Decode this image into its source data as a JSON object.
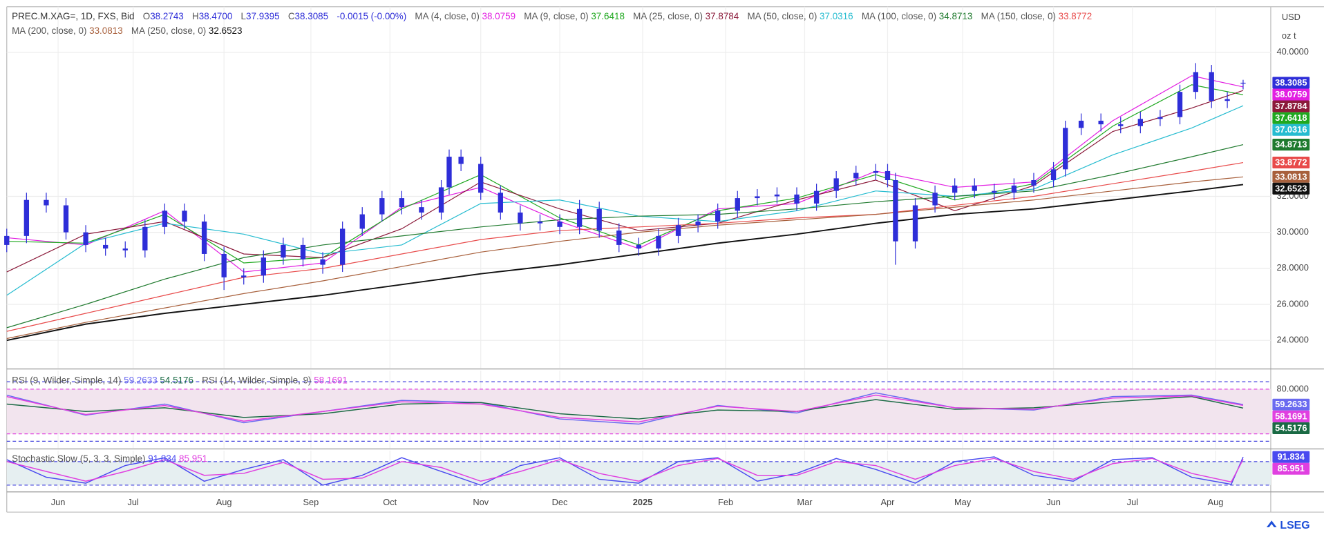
{
  "chart_data": [
    {
      "type": "candlestick",
      "title": "PREC.M.XAG=, 1D, FXS, Bid",
      "ohlc_header": [
        {
          "key": "O",
          "value": "38.2743"
        },
        {
          "key": "H",
          "value": "38.4700"
        },
        {
          "key": "L",
          "value": "37.9395"
        },
        {
          "key": "C",
          "value": "38.3085"
        }
      ],
      "change": "-0.0015 (-0.00%)",
      "currency": "USD",
      "unit": "oz t",
      "color": "#2e2ed8",
      "x": [
        0,
        5,
        10,
        15,
        20,
        25,
        30,
        35,
        40,
        45,
        50,
        55,
        60,
        65,
        70,
        75,
        80,
        85,
        90,
        95,
        100,
        105,
        110,
        112,
        115,
        120,
        125,
        130,
        135,
        140,
        145,
        150,
        155,
        160,
        165,
        170,
        175,
        180,
        185,
        190,
        195,
        200,
        205,
        210,
        215,
        220,
        223,
        225,
        230,
        235,
        240,
        245,
        250,
        255,
        260,
        265,
        268,
        272,
        277,
        282,
        287,
        292,
        297,
        301,
        305,
        309,
        313
      ],
      "open": [
        29.3,
        29.8,
        31.8,
        31.5,
        30.0,
        29.3,
        29.1,
        29.0,
        30.3,
        31.2,
        30.6,
        28.8,
        27.5,
        27.6,
        28.6,
        29.3,
        28.5,
        28.2,
        30.2,
        31.0,
        31.9,
        31.4,
        31.1,
        32.5,
        34.2,
        33.8,
        32.2,
        31.1,
        30.5,
        30.6,
        30.3,
        31.3,
        30.1,
        29.3,
        29.1,
        29.8,
        30.4,
        30.6,
        31.2,
        31.9,
        32.0,
        32.1,
        31.6,
        32.3,
        33.0,
        33.3,
        33.4,
        32.9,
        29.5,
        31.5,
        32.2,
        32.6,
        32.3,
        32.2,
        32.6,
        32.9,
        33.5,
        35.8,
        36.2,
        36.0,
        35.9,
        36.3,
        36.4,
        37.8,
        38.9,
        37.3,
        38.2743
      ],
      "high": [
        30.2,
        32.2,
        32.2,
        31.9,
        30.4,
        29.7,
        29.5,
        30.7,
        31.6,
        31.6,
        31.0,
        29.2,
        28.0,
        29.0,
        29.7,
        29.7,
        28.9,
        30.6,
        31.4,
        32.3,
        32.3,
        31.8,
        32.9,
        34.6,
        34.6,
        34.2,
        32.6,
        31.5,
        31.0,
        31.0,
        31.8,
        31.7,
        30.5,
        29.7,
        30.2,
        30.8,
        31.0,
        31.6,
        32.3,
        32.4,
        32.5,
        32.5,
        32.7,
        33.4,
        33.7,
        33.8,
        33.8,
        33.3,
        31.9,
        32.6,
        33.0,
        33.0,
        32.7,
        33.0,
        33.3,
        33.9,
        36.2,
        36.6,
        36.6,
        36.4,
        36.7,
        36.8,
        38.2,
        39.4,
        39.3,
        37.8,
        38.47
      ],
      "low": [
        28.9,
        29.4,
        31.1,
        29.6,
        28.9,
        28.7,
        28.6,
        28.6,
        29.9,
        30.2,
        28.4,
        26.8,
        27.1,
        27.2,
        28.2,
        28.1,
        27.7,
        27.8,
        29.8,
        30.6,
        31.0,
        30.7,
        30.7,
        32.1,
        33.4,
        31.8,
        30.7,
        30.1,
        30.1,
        29.9,
        29.9,
        29.7,
        28.9,
        28.7,
        28.7,
        29.4,
        30.0,
        30.2,
        30.8,
        31.5,
        31.6,
        31.2,
        31.2,
        31.9,
        32.6,
        32.9,
        32.5,
        28.2,
        29.1,
        31.1,
        31.8,
        31.9,
        31.8,
        31.8,
        32.2,
        32.5,
        33.1,
        35.4,
        35.6,
        35.5,
        35.5,
        35.9,
        36.0,
        37.4,
        36.9,
        36.9,
        37.9395
      ],
      "close": [
        29.8,
        31.8,
        31.5,
        30.0,
        29.3,
        29.1,
        29.0,
        30.3,
        31.2,
        30.6,
        28.8,
        27.5,
        27.6,
        28.6,
        29.3,
        28.5,
        28.2,
        30.2,
        31.0,
        31.9,
        31.4,
        31.1,
        32.5,
        34.2,
        33.8,
        32.2,
        31.1,
        30.5,
        30.6,
        30.3,
        31.3,
        30.1,
        29.3,
        29.1,
        29.8,
        30.4,
        30.6,
        31.2,
        31.9,
        32.0,
        32.1,
        31.6,
        32.3,
        33.0,
        33.3,
        33.4,
        32.9,
        29.5,
        31.5,
        32.2,
        32.6,
        32.3,
        32.2,
        32.6,
        32.9,
        33.5,
        35.8,
        36.2,
        36.0,
        35.9,
        36.3,
        36.4,
        37.8,
        38.9,
        37.3,
        37.4,
        38.3085
      ],
      "xlim": [
        0,
        320
      ],
      "xticks": [
        {
          "value": 13,
          "label": "Jun"
        },
        {
          "value": 32,
          "label": "Jul"
        },
        {
          "value": 55,
          "label": "Aug"
        },
        {
          "value": 77,
          "label": "Sep"
        },
        {
          "value": 97,
          "label": "Oct"
        },
        {
          "value": 120,
          "label": "Nov"
        },
        {
          "value": 140,
          "label": "Dec"
        },
        {
          "value": 161,
          "label": "2025"
        },
        {
          "value": 182,
          "label": "Feb"
        },
        {
          "value": 202,
          "label": "Mar"
        },
        {
          "value": 223,
          "label": "Apr"
        },
        {
          "value": 242,
          "label": "May"
        },
        {
          "value": 265,
          "label": "Jun"
        },
        {
          "value": 285,
          "label": "Jul"
        },
        {
          "value": 306,
          "label": "Aug"
        }
      ],
      "ylim": [
        22.46,
        42.53
      ],
      "yticks": [
        {
          "value": 24,
          "label": "24.0000"
        },
        {
          "value": 26,
          "label": "26.0000"
        },
        {
          "value": 28,
          "label": "28.0000"
        },
        {
          "value": 30,
          "label": "30.0000"
        },
        {
          "value": 32,
          "label": "32.0000"
        },
        {
          "value": 40,
          "label": "40.0000"
        }
      ],
      "grid": true,
      "overlays": [
        {
          "name": "MA (4, close, 0)",
          "value_label": "38.0759",
          "color": "#e21fe2",
          "x": [
            0,
            20,
            40,
            60,
            80,
            100,
            120,
            140,
            160,
            180,
            200,
            220,
            240,
            260,
            280,
            300,
            313
          ],
          "values": [
            29.7,
            29.3,
            31.2,
            27.8,
            28.3,
            31.4,
            32.5,
            30.6,
            29.1,
            31.3,
            31.6,
            33.4,
            32.5,
            32.8,
            36.2,
            38.7,
            38.0759
          ]
        },
        {
          "name": "MA (9, close, 0)",
          "value_label": "37.6418",
          "color": "#1fa81f",
          "x": [
            0,
            20,
            40,
            60,
            80,
            100,
            120,
            140,
            160,
            180,
            200,
            220,
            240,
            260,
            280,
            300,
            313
          ],
          "values": [
            29.5,
            29.4,
            31.0,
            28.3,
            28.6,
            31.3,
            33.2,
            30.8,
            29.3,
            31.2,
            31.9,
            33.2,
            31.8,
            32.7,
            35.9,
            38.2,
            37.6418
          ]
        },
        {
          "name": "MA (25, close, 0)",
          "value_label": "37.8784",
          "color": "#8b1a3a",
          "x": [
            0,
            20,
            40,
            60,
            80,
            100,
            120,
            140,
            160,
            180,
            200,
            220,
            240,
            260,
            280,
            300,
            313
          ],
          "values": [
            27.8,
            29.9,
            30.6,
            28.8,
            28.6,
            30.2,
            32.8,
            31.3,
            30.1,
            30.5,
            31.8,
            32.9,
            31.2,
            32.6,
            35.6,
            36.9,
            37.8784
          ]
        },
        {
          "name": "MA (50, close, 0)",
          "value_label": "37.0316",
          "color": "#26bcd0",
          "x": [
            0,
            20,
            40,
            60,
            80,
            100,
            120,
            140,
            160,
            180,
            200,
            220,
            240,
            260,
            280,
            300,
            313
          ],
          "values": [
            26.5,
            29.4,
            30.5,
            29.9,
            28.8,
            29.3,
            31.6,
            31.8,
            30.9,
            30.6,
            31.2,
            32.3,
            32.0,
            32.4,
            34.3,
            35.8,
            37.0316
          ]
        },
        {
          "name": "MA (100, close, 0)",
          "value_label": "34.8713",
          "color": "#1f7a2e",
          "x": [
            0,
            20,
            40,
            60,
            80,
            100,
            120,
            140,
            160,
            180,
            200,
            220,
            240,
            260,
            280,
            300,
            313
          ],
          "values": [
            24.7,
            26.0,
            27.4,
            28.6,
            29.3,
            29.8,
            30.3,
            30.7,
            30.9,
            31.0,
            31.3,
            31.7,
            32.0,
            32.3,
            33.2,
            34.2,
            34.8713
          ]
        },
        {
          "name": "MA (150, close, 0)",
          "value_label": "33.8772",
          "color": "#e84a4a",
          "x": [
            0,
            20,
            40,
            60,
            80,
            100,
            120,
            140,
            160,
            180,
            200,
            220,
            240,
            260,
            280,
            300,
            313
          ],
          "values": [
            24.5,
            25.5,
            26.5,
            27.5,
            28.0,
            28.8,
            29.6,
            30.1,
            30.3,
            30.5,
            30.8,
            31.0,
            31.5,
            32.0,
            32.7,
            33.4,
            33.8772
          ]
        },
        {
          "name": "MA (200, close, 0)",
          "value_label": "33.0813",
          "color": "#a8603c",
          "x": [
            0,
            20,
            40,
            60,
            80,
            100,
            120,
            140,
            160,
            180,
            200,
            220,
            240,
            260,
            280,
            300,
            313
          ],
          "values": [
            24.1,
            25.0,
            25.8,
            26.6,
            27.3,
            28.1,
            28.9,
            29.5,
            30.0,
            30.4,
            30.7,
            31.0,
            31.4,
            31.8,
            32.3,
            32.8,
            33.0813
          ]
        },
        {
          "name": "MA (250, close, 0)",
          "value_label": "32.6523",
          "color": "#111111",
          "x": [
            0,
            20,
            40,
            60,
            80,
            100,
            120,
            140,
            160,
            180,
            200,
            220,
            240,
            260,
            280,
            300,
            313
          ],
          "values": [
            24.0,
            24.9,
            25.5,
            26.0,
            26.5,
            27.1,
            27.7,
            28.2,
            28.8,
            29.4,
            29.9,
            30.5,
            31.0,
            31.3,
            31.8,
            32.3,
            32.6523
          ]
        }
      ]
    },
    {
      "type": "line",
      "ylim": [
        0.8,
        104.9
      ],
      "yticks": [
        {
          "value": 80,
          "label": "80.0000"
        }
      ],
      "band": {
        "range": [
          20,
          80
        ],
        "color": "#f2e4ee"
      },
      "levels": [
        {
          "value": 90,
          "color": "#4444dd"
        },
        {
          "value": 80,
          "color": "#e040e0"
        },
        {
          "value": 20,
          "color": "#e040e0"
        },
        {
          "value": 10,
          "color": "#4444dd"
        }
      ],
      "x": [
        0,
        20,
        40,
        60,
        80,
        100,
        120,
        140,
        160,
        180,
        200,
        220,
        240,
        260,
        280,
        300,
        313
      ],
      "groups": [
        {
          "name": "RSI (9, Wilder, Simple, 14)",
          "lines": [
            {
              "value_label": "59.2633",
              "color": "#6a6af0",
              "values": [
                72,
                45,
                60,
                35,
                50,
                65,
                62,
                40,
                33,
                58,
                48,
                75,
                55,
                52,
                70,
                72,
                59.2633
              ]
            },
            {
              "value_label": "54.5176",
              "color": "#1a6a44",
              "values": [
                60,
                50,
                55,
                42,
                47,
                60,
                62,
                47,
                40,
                52,
                50,
                66,
                53,
                55,
                63,
                70,
                54.5176
              ]
            }
          ]
        },
        {
          "name": "RSI (14, Wilder, Simple, 9)",
          "lines": [
            {
              "value_label": "58.1691",
              "color": "#e040e0",
              "values": [
                70,
                46,
                58,
                37,
                50,
                63,
                60,
                42,
                36,
                57,
                50,
                72,
                55,
                53,
                68,
                71,
                58.1691
              ]
            }
          ]
        }
      ]
    },
    {
      "type": "line",
      "ylim": [
        7,
        108
      ],
      "band": {
        "range": [
          20,
          80
        ],
        "color": "#e6eff1"
      },
      "levels": [
        {
          "value": 80,
          "color": "#4444dd"
        },
        {
          "value": 20,
          "color": "#4444dd"
        }
      ],
      "x": [
        0,
        10,
        20,
        30,
        40,
        50,
        60,
        70,
        80,
        90,
        100,
        110,
        120,
        130,
        140,
        150,
        160,
        170,
        180,
        190,
        200,
        210,
        220,
        230,
        240,
        250,
        260,
        270,
        280,
        290,
        300,
        310,
        313
      ],
      "groups": [
        {
          "name": "Stochastic Slow (5, 3, 3, Simple)",
          "lines": [
            {
              "value_label": "91.834",
              "color": "#4a4af0",
              "values": [
                85,
                40,
                25,
                70,
                90,
                30,
                60,
                85,
                20,
                45,
                90,
                55,
                20,
                70,
                90,
                35,
                25,
                80,
                90,
                30,
                50,
                88,
                60,
                25,
                80,
                92,
                45,
                30,
                85,
                90,
                40,
                22,
                91.834
              ]
            },
            {
              "value_label": "85.951",
              "color": "#e040e0",
              "values": [
                80,
                55,
                30,
                55,
                85,
                45,
                50,
                78,
                35,
                38,
                80,
                65,
                30,
                55,
                85,
                50,
                30,
                70,
                88,
                45,
                45,
                80,
                70,
                35,
                70,
                88,
                55,
                35,
                75,
                88,
                50,
                28,
                85.951
              ]
            }
          ]
        }
      ]
    }
  ],
  "branding": {
    "logo": "LSEG"
  }
}
